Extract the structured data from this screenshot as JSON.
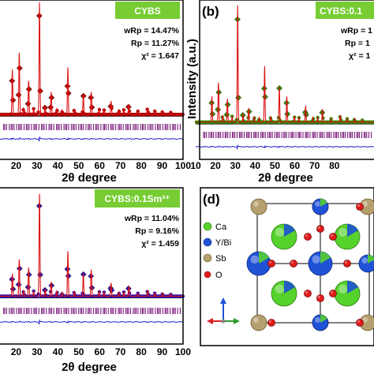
{
  "colors": {
    "badge_bg": "#77cc33",
    "calc_line": "#dd1111",
    "obs_a": "#aa0000",
    "obs_b": "#2e8b00",
    "obs_c": "#3311aa",
    "bragg": "#7a1a7a",
    "diff": "#1111cc",
    "bg_line": "#111111",
    "atom_ca": "#55d22c",
    "atom_ybi": "#1f52d6",
    "atom_sb": "#b59f6e",
    "atom_o": "#e31b1b"
  },
  "chart_data": [
    {
      "panel": "a",
      "panel_label": "",
      "type": "scatter",
      "badge": "CYBS",
      "stats": [
        "wRp = 14.47%",
        "Rp = 11.27%",
        "χ² = 1.647"
      ],
      "xlabel": "2θ degree",
      "ylabel": "",
      "xlim": [
        10,
        100
      ],
      "ylim": [
        -0.25,
        1.0
      ],
      "x_ticks": [
        "20",
        "30",
        "40",
        "50",
        "60",
        "70",
        "80",
        "90",
        "100"
      ],
      "peaks": [
        {
          "x": 18.2,
          "y": 0.4
        },
        {
          "x": 21.5,
          "y": 0.55
        },
        {
          "x": 26.0,
          "y": 0.3
        },
        {
          "x": 31.2,
          "y": 1.0
        },
        {
          "x": 36.8,
          "y": 0.2
        },
        {
          "x": 44.8,
          "y": 0.42
        },
        {
          "x": 52.2,
          "y": 0.17
        },
        {
          "x": 56.0,
          "y": 0.2
        },
        {
          "x": 65.5,
          "y": 0.12
        },
        {
          "x": 74.0,
          "y": 0.09
        },
        {
          "x": 83.0,
          "y": 0.06
        }
      ]
    },
    {
      "panel": "b",
      "panel_label": "(b)",
      "type": "scatter",
      "badge": "CYBS:0.1",
      "stats": [
        "wRp = 1",
        "Rp = 1",
        "χ² = 1"
      ],
      "xlabel": "2θ degree",
      "ylabel": "Intensity (a.u.)",
      "xlim": [
        10,
        100
      ],
      "ylim": [
        -0.25,
        1.0
      ],
      "x_ticks": [
        "10",
        "20",
        "30",
        "40",
        "50",
        "60",
        "70",
        "80"
      ],
      "peaks": [
        {
          "x": 18.2,
          "y": 0.22
        },
        {
          "x": 21.5,
          "y": 0.34
        },
        {
          "x": 26.0,
          "y": 0.2
        },
        {
          "x": 31.2,
          "y": 1.0
        },
        {
          "x": 36.8,
          "y": 0.12
        },
        {
          "x": 44.8,
          "y": 0.48
        },
        {
          "x": 52.2,
          "y": 0.3
        },
        {
          "x": 56.0,
          "y": 0.22
        },
        {
          "x": 65.5,
          "y": 0.14
        },
        {
          "x": 74.0,
          "y": 0.11
        },
        {
          "x": 83.0,
          "y": 0.06
        }
      ]
    },
    {
      "panel": "c",
      "panel_label": "",
      "type": "scatter",
      "badge": "CYBS:0.1Sm³⁺",
      "stats": [
        "wRp = 11.04%",
        "Rp = 9.16%",
        "χ² = 1.459"
      ],
      "xlabel": "2θ degree",
      "ylabel": "",
      "xlim": [
        10,
        100
      ],
      "ylim": [
        -0.25,
        1.0
      ],
      "x_ticks": [
        "20",
        "30",
        "40",
        "50",
        "60",
        "70",
        "80",
        "90",
        "100"
      ],
      "peaks": [
        {
          "x": 18.2,
          "y": 0.22
        },
        {
          "x": 21.5,
          "y": 0.36
        },
        {
          "x": 26.0,
          "y": 0.28
        },
        {
          "x": 31.2,
          "y": 1.0
        },
        {
          "x": 36.8,
          "y": 0.14
        },
        {
          "x": 44.8,
          "y": 0.44
        },
        {
          "x": 52.2,
          "y": 0.22
        },
        {
          "x": 56.0,
          "y": 0.26
        },
        {
          "x": 65.5,
          "y": 0.13
        },
        {
          "x": 74.0,
          "y": 0.1
        },
        {
          "x": 83.0,
          "y": 0.06
        }
      ]
    }
  ],
  "structure": {
    "panel_label": "(d)",
    "legend": [
      {
        "symbol": "ca",
        "label": "Ca"
      },
      {
        "symbol": "ybi",
        "label": "Y/Bi"
      },
      {
        "symbol": "sb",
        "label": "Sb"
      },
      {
        "symbol": "o",
        "label": "O"
      }
    ]
  }
}
